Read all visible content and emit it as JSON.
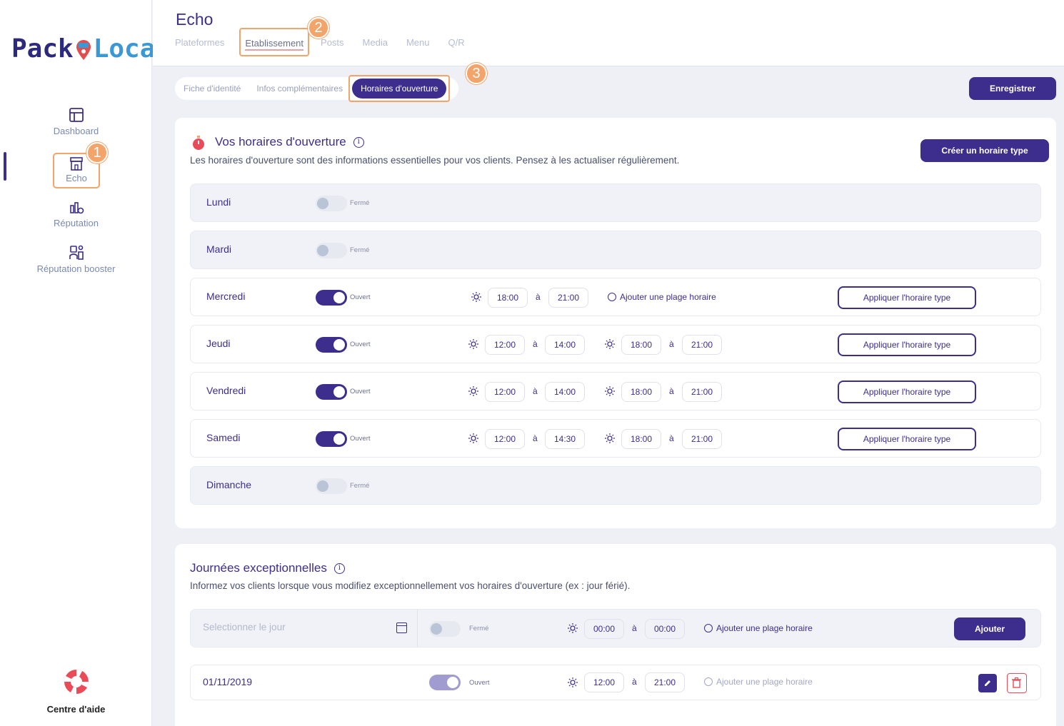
{
  "brand": {
    "part1": "Pack",
    "part2": "Local"
  },
  "sidebar": {
    "items": [
      {
        "label": "Dashboard"
      },
      {
        "label": "Echo"
      },
      {
        "label": "Réputation"
      },
      {
        "label": "Réputation booster"
      }
    ],
    "help_label": "Centre d'aide"
  },
  "header": {
    "title": "Echo",
    "tabs": [
      "Plateformes",
      "Etablissement",
      "Posts",
      "Media",
      "Menu",
      "Q/R"
    ]
  },
  "subtabs": [
    "Fiche d'identité",
    "Infos complémentaires",
    "Horaires d'ouverture"
  ],
  "steps": [
    "1",
    "2",
    "3"
  ],
  "save_label": "Enregistrer",
  "hours": {
    "title": "Vos horaires d'ouverture",
    "description": "Les horaires d'ouverture sont des informations essentielles pour vos clients. Pensez à les actualiser régulièrement.",
    "create_label": "Créer un horaire type",
    "apply_label": "Appliquer l'horaire type",
    "add_range_label": "Ajouter une plage horaire",
    "separator": "à",
    "days": [
      {
        "name": "Lundi",
        "status": "Fermé"
      },
      {
        "name": "Mardi",
        "status": "Fermé"
      },
      {
        "name": "Mercredi",
        "status": "Ouvert",
        "ranges": [
          [
            "18:00",
            "21:00"
          ]
        ]
      },
      {
        "name": "Jeudi",
        "status": "Ouvert",
        "ranges": [
          [
            "12:00",
            "14:00"
          ],
          [
            "18:00",
            "21:00"
          ]
        ]
      },
      {
        "name": "Vendredi",
        "status": "Ouvert",
        "ranges": [
          [
            "12:00",
            "14:00"
          ],
          [
            "18:00",
            "21:00"
          ]
        ]
      },
      {
        "name": "Samedi",
        "status": "Ouvert",
        "ranges": [
          [
            "12:00",
            "14:30"
          ],
          [
            "18:00",
            "21:00"
          ]
        ]
      },
      {
        "name": "Dimanche",
        "status": "Fermé"
      }
    ]
  },
  "exceptional": {
    "title": "Journées exceptionnelles",
    "description": "Informez vos clients lorsque vous modifiez exceptionnellement vos horaires d'ouverture (ex : jour férié).",
    "date_placeholder": "Selectionner le jour",
    "new_status": "Fermé",
    "new_from": "00:00",
    "new_to": "00:00",
    "add_range_label": "Ajouter une plage horaire",
    "add_label": "Ajouter",
    "entry": {
      "date": "01/11/2019",
      "status": "Ouvert",
      "from": "12:00",
      "to": "21:00"
    }
  },
  "colors": {
    "primary": "#3d2e8e",
    "highlight": "#f3a46a",
    "danger": "#e94c58",
    "accent_blue": "#3a98d4"
  }
}
